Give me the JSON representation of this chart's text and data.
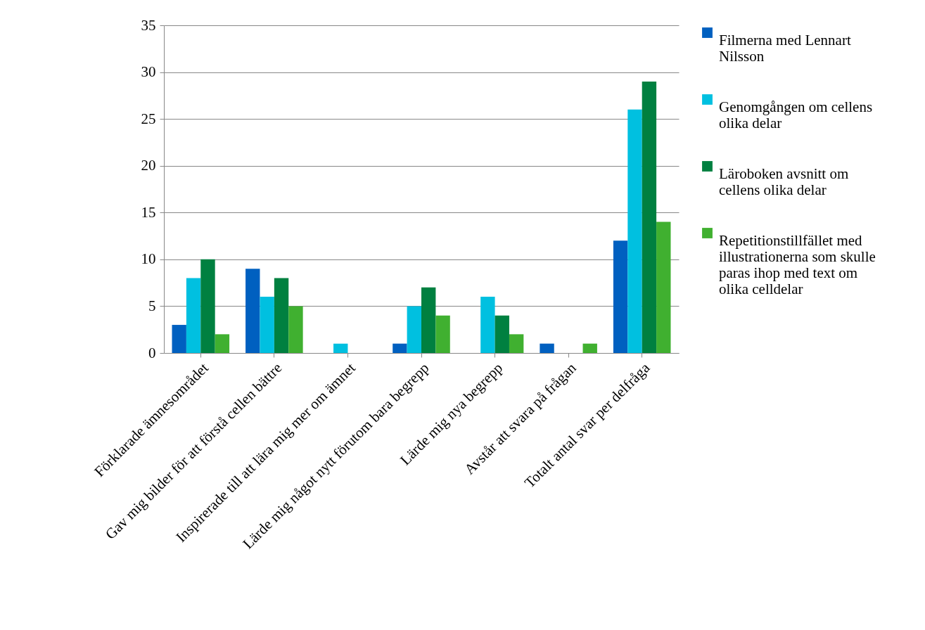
{
  "chart_data": {
    "type": "bar",
    "categories": [
      "Förklarade ämnesområdet",
      "Gav mig bilder för att förstå cellen bättre",
      "Inspirerade till att lära mig mer om ämnet",
      "Lärde mig något nytt förutom bara begrepp",
      "Lärde mig nya begrepp",
      "Avstår att svara på frågan",
      "Totalt antal svar per delfråga"
    ],
    "series": [
      {
        "name": "Filmerna med Lennart Nilsson",
        "color": "#0060c0",
        "values": [
          3,
          9,
          0,
          1,
          0,
          1,
          12
        ]
      },
      {
        "name": "Genomgången om cellens olika delar",
        "color": "#00c0e0",
        "values": [
          8,
          6,
          1,
          5,
          6,
          0,
          26
        ]
      },
      {
        "name": "Läroboken avsnitt om cellens olika delar",
        "color": "#008040",
        "values": [
          10,
          8,
          0,
          7,
          4,
          0,
          29
        ]
      },
      {
        "name": "Repetitionstillfället med illustrationerna som skulle paras ihop med text om olika celldelar",
        "color": "#40b030",
        "values": [
          2,
          5,
          0,
          4,
          2,
          1,
          14
        ]
      }
    ],
    "ylim": [
      0,
      35
    ],
    "yticks": [
      0,
      5,
      10,
      15,
      20,
      25,
      30,
      35
    ],
    "grid": "y",
    "legend": "right"
  }
}
